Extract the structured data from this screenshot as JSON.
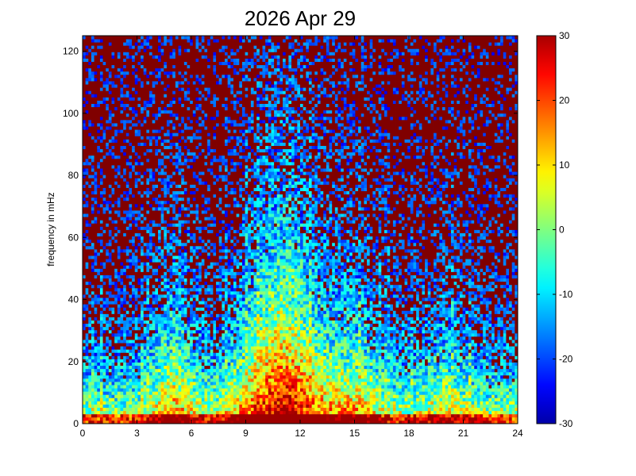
{
  "chart_data": {
    "type": "heatmap",
    "title": "2026 Apr 29",
    "xlabel": "",
    "ylabel": "frequency in mHz",
    "xlim": [
      0,
      24
    ],
    "ylim": [
      0,
      125
    ],
    "x_ticks": [
      0,
      3,
      6,
      9,
      12,
      15,
      18,
      21,
      24
    ],
    "x_tick_labels": [
      "0",
      "3",
      "6",
      "9",
      "12",
      "15",
      "18",
      "21",
      "24"
    ],
    "y_ticks": [
      0,
      20,
      40,
      60,
      80,
      100,
      120
    ],
    "y_tick_labels": [
      "0",
      "20",
      "40",
      "60",
      "80",
      "100",
      "120"
    ],
    "colorbar": {
      "range": [
        -30,
        30
      ],
      "ticks": [
        -30,
        -20,
        -10,
        0,
        10,
        20,
        30
      ],
      "tick_labels": [
        "-30",
        "-20",
        "-10",
        "0",
        "10",
        "20",
        "30"
      ],
      "colormap": "jet"
    },
    "grid": false,
    "legend": "none",
    "frame_color": "#000000"
  }
}
